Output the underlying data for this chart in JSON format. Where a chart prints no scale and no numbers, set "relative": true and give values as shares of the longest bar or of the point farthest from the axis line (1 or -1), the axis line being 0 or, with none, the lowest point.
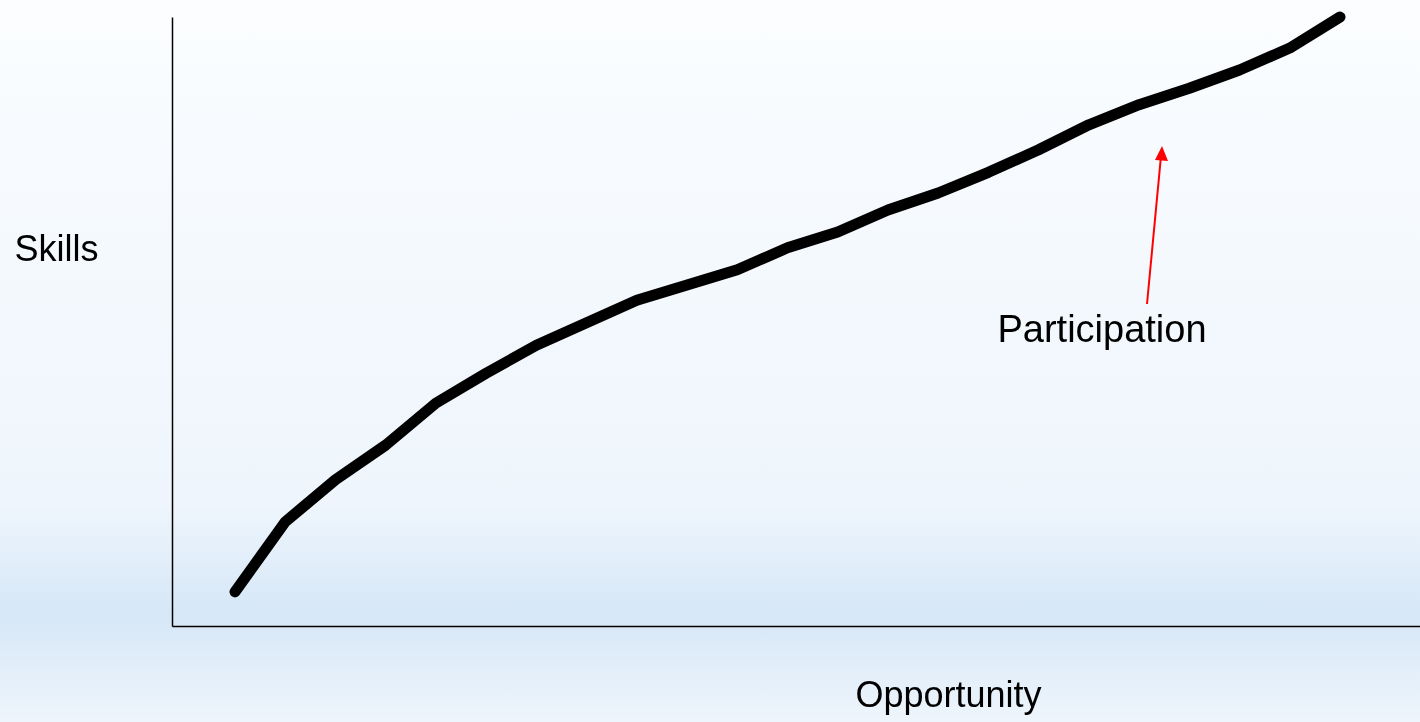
{
  "chart_data": {
    "type": "line",
    "relative": true,
    "xlabel": "Opportunity",
    "ylabel": "Skills",
    "tick_labels": false,
    "categories": [
      null,
      null,
      null,
      null,
      null,
      null,
      null,
      null,
      null,
      null,
      null,
      null,
      null,
      null,
      null,
      null,
      null,
      null,
      null,
      null,
      null,
      null,
      null
    ],
    "series": [
      {
        "color": "#000000",
        "values": [
          0.056,
          0.171,
          0.24,
          0.297,
          0.366,
          0.415,
          0.461,
          0.498,
          0.535,
          0.56,
          0.585,
          0.621,
          0.647,
          0.683,
          0.711,
          0.745,
          0.782,
          0.823,
          0.856,
          0.883,
          0.913,
          0.949,
          1.0
        ]
      }
    ],
    "annotations": [
      "Participation"
    ]
  }
}
